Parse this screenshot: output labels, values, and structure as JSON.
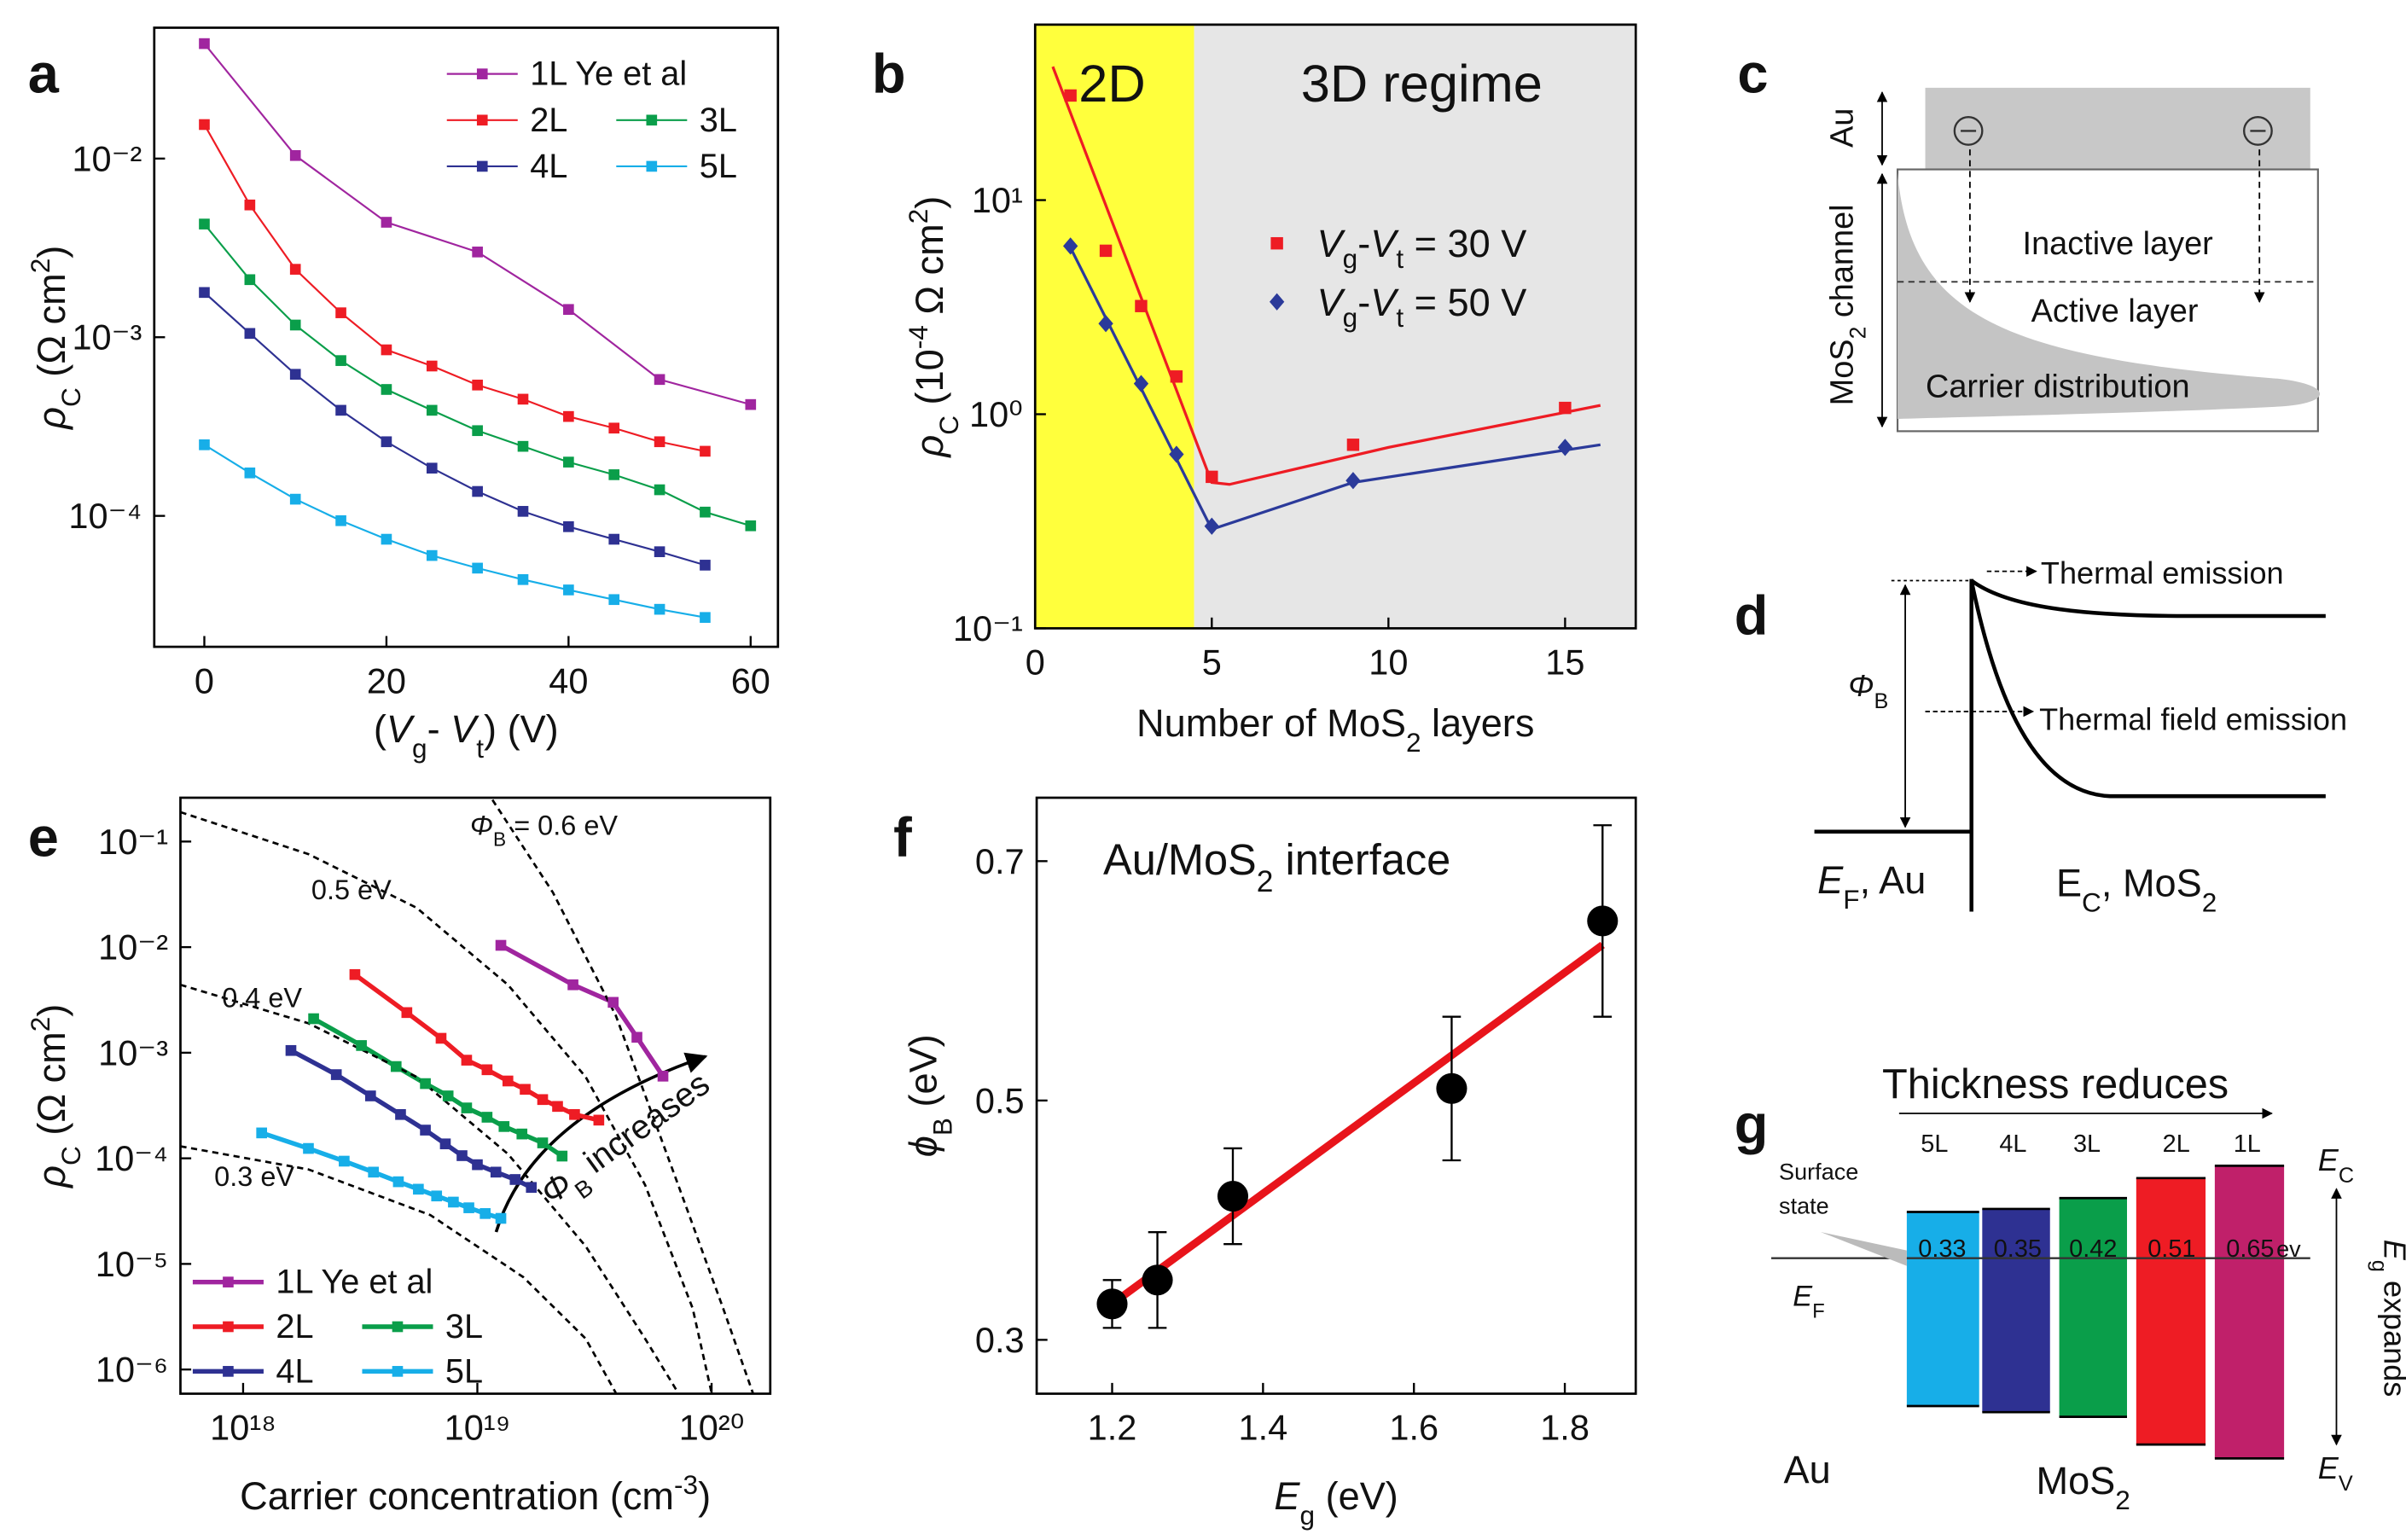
{
  "chart_data": [
    {
      "panel": "a",
      "type": "line",
      "marker": "square",
      "xlog": false,
      "ylog": true,
      "xlabel": [
        {
          "text": "("
        },
        {
          "text": "V",
          "italic": true
        },
        {
          "text": "g",
          "sub": true
        },
        {
          "text": "- "
        },
        {
          "text": "V",
          "italic": true
        },
        {
          "text": "t",
          "sub": true
        },
        {
          "text": ") (V)"
        }
      ],
      "ylabel": [
        {
          "text": "ρ",
          "italic": true
        },
        {
          "text": "C",
          "sub": true
        },
        {
          "text": " (Ω cm"
        },
        {
          "text": "2",
          "sup": true
        },
        {
          "text": ")"
        }
      ],
      "xlim": [
        -5.5,
        63
      ],
      "ylim": [
        1.85e-05,
        0.054
      ],
      "xticks": [
        0,
        20,
        40,
        60
      ],
      "yticks": [
        {
          "value": 0.0001,
          "label": "10⁻⁴"
        },
        {
          "value": 0.001,
          "label": "10⁻³"
        },
        {
          "value": 0.01,
          "label": "10⁻²"
        }
      ],
      "legend": "upper right",
      "legend_columns": 2,
      "series": [
        {
          "name": "1L Ye et al",
          "color": "#a0259f",
          "x": [
            0,
            10,
            20,
            30,
            40,
            50,
            60
          ],
          "values": [
            0.044,
            0.0104,
            0.0044,
            0.003,
            0.00143,
            0.00058,
            0.00042
          ]
        },
        {
          "name": "2L",
          "color": "#ee1c24",
          "x": [
            0,
            5,
            10,
            15,
            20,
            25,
            30,
            35,
            40,
            45,
            50,
            55
          ],
          "values": [
            0.0155,
            0.0055,
            0.0024,
            0.00137,
            0.00085,
            0.00069,
            0.00054,
            0.00045,
            0.00036,
            0.00031,
            0.00026,
            0.00023
          ]
        },
        {
          "name": "3L",
          "color": "#0a9e4a",
          "x": [
            0,
            5,
            10,
            15,
            20,
            25,
            30,
            35,
            40,
            45,
            50,
            55,
            60
          ],
          "values": [
            0.0043,
            0.0021,
            0.00117,
            0.00074,
            0.00051,
            0.00039,
            0.0003,
            0.000245,
            0.0002,
            0.00017,
            0.00014,
            0.000105,
            8.8e-05
          ]
        },
        {
          "name": "4L",
          "color": "#2e3192",
          "x": [
            0,
            5,
            10,
            15,
            20,
            25,
            30,
            35,
            40,
            45,
            50,
            55
          ],
          "values": [
            0.00178,
            0.00105,
            0.00062,
            0.00039,
            0.00026,
            0.000185,
            0.000137,
            0.000106,
            8.7e-05,
            7.4e-05,
            6.3e-05,
            5.3e-05
          ]
        },
        {
          "name": "5L",
          "color": "#17aee8",
          "x": [
            0,
            5,
            10,
            15,
            20,
            25,
            30,
            35,
            40,
            45,
            50,
            55
          ],
          "values": [
            0.00025,
            0.000174,
            0.000124,
            9.4e-05,
            7.4e-05,
            6e-05,
            5.1e-05,
            4.4e-05,
            3.85e-05,
            3.4e-05,
            3e-05,
            2.7e-05
          ]
        }
      ]
    },
    {
      "panel": "b",
      "type": "scatter",
      "xlog": false,
      "ylog": true,
      "xlabel": [
        {
          "text": "Number of MoS"
        },
        {
          "text": "2",
          "sub": true
        },
        {
          "text": " layers"
        }
      ],
      "ylabel": [
        {
          "text": "ρ",
          "italic": true
        },
        {
          "text": "C",
          "sub": true
        },
        {
          "text": " (10"
        },
        {
          "text": "-4",
          "sup": true
        },
        {
          "text": " Ω cm"
        },
        {
          "text": "2",
          "sup": true
        },
        {
          "text": ")"
        }
      ],
      "xlim": [
        0,
        17
      ],
      "ylim": [
        0.1,
        66
      ],
      "xticks": [
        0,
        5,
        10,
        15
      ],
      "yticks": [
        {
          "value": 0.1,
          "label": "10⁻¹"
        },
        {
          "value": 1,
          "label": "10⁰"
        },
        {
          "value": 10,
          "label": "10¹"
        }
      ],
      "regions": [
        {
          "x": [
            0,
            4.5
          ],
          "color": "#ffff3c"
        },
        {
          "x": [
            4.5,
            17
          ],
          "color": "#e6e6e6"
        }
      ],
      "annotations": [
        "2D",
        "3D regime"
      ],
      "legend": "center right",
      "legend_columns": 1,
      "series": [
        {
          "name": [
            {
              "text": "V",
              "italic": true
            },
            {
              "text": "g",
              "sub": true
            },
            {
              "text": "-"
            },
            {
              "text": "V",
              "italic": true
            },
            {
              "text": "t",
              "sub": true
            },
            {
              "text": " = 30 V"
            }
          ],
          "color": "#ee1c24",
          "style": "markers",
          "marker": "square",
          "x": [
            1,
            2,
            3,
            4,
            5,
            9,
            15
          ],
          "values": [
            30.8,
            5.8,
            3.2,
            1.5,
            0.51,
            0.72,
            1.07
          ]
        },
        {
          "name": [
            {
              "text": "V",
              "italic": true
            },
            {
              "text": "g",
              "sub": true
            },
            {
              "text": "-"
            },
            {
              "text": "V",
              "italic": true
            },
            {
              "text": "t",
              "sub": true
            },
            {
              "text": " = 50 V"
            }
          ],
          "color": "#2b3a9a",
          "style": "markers",
          "marker": "diamond",
          "x": [
            1,
            2,
            3,
            4,
            5,
            9,
            15
          ],
          "values": [
            6.1,
            2.65,
            1.39,
            0.65,
            0.3,
            0.49,
            0.7
          ]
        },
        {
          "color": "#ee1c24",
          "style": "line",
          "x": [
            0.5,
            5,
            5.5,
            10,
            16
          ],
          "values": [
            42,
            0.48,
            0.47,
            0.7,
            1.1
          ]
        },
        {
          "color": "#2b3a9a",
          "style": "line",
          "x": [
            1,
            5,
            9,
            16
          ],
          "values": [
            6.0,
            0.29,
            0.48,
            0.72
          ]
        }
      ]
    },
    {
      "panel": "e",
      "type": "line",
      "marker": "square",
      "xlog": true,
      "ylog": true,
      "xlabel": [
        {
          "text": "Carrier concentration (cm"
        },
        {
          "text": "-3",
          "sup": true
        },
        {
          "text": ")"
        }
      ],
      "ylabel": [
        {
          "text": "ρ",
          "italic": true
        },
        {
          "text": "C",
          "sub": true
        },
        {
          "text": " (Ω cm"
        },
        {
          "text": "2",
          "sup": true
        },
        {
          "text": ")"
        }
      ],
      "xlim": [
        5.4e+17,
        1.78e+20
      ],
      "ylim": [
        5.9e-07,
        0.26
      ],
      "xticks": [
        {
          "value": 1e+18,
          "label": "10¹⁸"
        },
        {
          "value": 1e+19,
          "label": "10¹⁹"
        },
        {
          "value": 1e+20,
          "label": "10²⁰"
        }
      ],
      "yticks": [
        {
          "value": 1e-06,
          "label": "10⁻⁶"
        },
        {
          "value": 1e-05,
          "label": "10⁻⁵"
        },
        {
          "value": 0.0001,
          "label": "10⁻⁴"
        },
        {
          "value": 0.001,
          "label": "10⁻³"
        },
        {
          "value": 0.01,
          "label": "10⁻²"
        },
        {
          "value": 0.1,
          "label": "10⁻¹"
        }
      ],
      "annotations": [
        [
          {
            "text": "Φ",
            "italic": true
          },
          {
            "text": "B",
            "sub": true
          },
          {
            "text": " = 0.6 eV"
          }
        ],
        "0.5 eV",
        "0.4 eV",
        "0.3 eV",
        [
          {
            "text": "Φ",
            "italic": true
          },
          {
            "text": "B",
            "sub": true
          },
          {
            "text": " increases"
          }
        ]
      ],
      "legend": "lower left",
      "legend_columns": 2,
      "series": [
        {
          "name": "1L Ye et al",
          "color": "#a0259f",
          "x": [
            1.26e+19,
            2.56e+19,
            3.8e+19,
            4.8e+19,
            6.2e+19
          ],
          "values": [
            0.0104,
            0.0044,
            0.003,
            0.0014,
            0.0006
          ]
        },
        {
          "name": "2L",
          "color": "#ee1c24",
          "x": [
            3e+18,
            5e+18,
            7e+18,
            9e+18,
            1.1e+19,
            1.35e+19,
            1.6e+19,
            1.9e+19,
            2.2e+19,
            2.6e+19,
            3.3e+19
          ],
          "values": [
            0.0055,
            0.0024,
            0.00137,
            0.00085,
            0.00069,
            0.00054,
            0.00045,
            0.00036,
            0.00031,
            0.00026,
            0.00023
          ]
        },
        {
          "name": "3L",
          "color": "#0a9e4a",
          "x": [
            2e+18,
            3.2e+18,
            4.5e+18,
            6e+18,
            7.5e+18,
            9e+18,
            1.1e+19,
            1.3e+19,
            1.55e+19,
            1.9e+19,
            2.3e+19
          ],
          "values": [
            0.0021,
            0.00117,
            0.00074,
            0.00051,
            0.00039,
            0.0003,
            0.000245,
            0.0002,
            0.00017,
            0.00014,
            0.000105
          ]
        },
        {
          "name": "4L",
          "color": "#2e3192",
          "x": [
            1.6e+18,
            2.5e+18,
            3.5e+18,
            4.7e+18,
            6e+18,
            7.3e+18,
            8.6e+18,
            1e+19,
            1.2e+19,
            1.45e+19,
            1.7e+19
          ],
          "values": [
            0.00105,
            0.00062,
            0.00039,
            0.00026,
            0.000185,
            0.000137,
            0.000106,
            8.7e-05,
            7.4e-05,
            6.3e-05,
            5.3e-05
          ]
        },
        {
          "name": "5L",
          "color": "#17aee8",
          "x": [
            1.2e+18,
            1.9e+18,
            2.7e+18,
            3.6e+18,
            4.6e+18,
            5.6e+18,
            6.7e+18,
            7.9e+18,
            9.2e+18,
            1.08e+19,
            1.26e+19
          ],
          "values": [
            0.000174,
            0.000124,
            9.4e-05,
            7.4e-05,
            6e-05,
            5.1e-05,
            4.4e-05,
            3.85e-05,
            3.4e-05,
            3e-05,
            2.7e-05
          ]
        },
        {
          "color": "#000000",
          "style": "line",
          "dash": true,
          "x": [
            1.16e+19,
            2.1e+19,
            3.9e+19,
            7.2e+19,
            1.12e+20,
            1.5e+20
          ],
          "values": [
            0.248,
            0.033,
            0.00225,
            5.6e-05,
            3.8e-06,
            6e-07
          ]
        },
        {
          "color": "#000000",
          "style": "line",
          "dash": true,
          "x": [
            5.4e+17,
            1.9e+18,
            5.5e+18,
            1.35e+19,
            2.9e+19,
            5.2e+19,
            8.3e+19,
            1e+20
          ],
          "values": [
            0.19,
            0.076,
            0.0236,
            0.0044,
            0.00059,
            5.6e-05,
            3.8e-06,
            6e-07
          ]
        },
        {
          "color": "#000000",
          "style": "line",
          "dash": true,
          "x": [
            5.4e+17,
            1.9e+18,
            5.5e+18,
            1.35e+19,
            2.9e+19,
            5.2e+19,
            7.2e+19
          ],
          "values": [
            0.0044,
            0.0019,
            0.00059,
            0.00011,
            1.47e-05,
            1.96e-06,
            6e-07
          ]
        },
        {
          "color": "#000000",
          "style": "line",
          "dash": true,
          "x": [
            5.4e+17,
            1.9e+18,
            6.3e+18,
            1.57e+19,
            2.9e+19,
            3.9e+19
          ],
          "values": [
            0.00013,
            7.85e-05,
            2.9e-05,
            7.5e-06,
            1.96e-06,
            6e-07
          ]
        }
      ]
    },
    {
      "panel": "f",
      "type": "scatter",
      "xlog": false,
      "ylog": false,
      "xlabel": [
        {
          "text": "E",
          "italic": true
        },
        {
          "text": "g",
          "sub": true
        },
        {
          "text": " (eV)"
        }
      ],
      "ylabel": [
        {
          "text": "ϕ",
          "italic": true
        },
        {
          "text": "B",
          "sub": true
        },
        {
          "text": " (eV)"
        }
      ],
      "xlim": [
        1.1,
        1.894
      ],
      "ylim": [
        0.255,
        0.753
      ],
      "xticks": [
        1.2,
        1.4,
        1.6,
        1.8
      ],
      "yticks": [
        0.3,
        0.5,
        0.7
      ],
      "annotations": [
        [
          {
            "text": "Au/MoS"
          },
          {
            "text": "2",
            "sub": true
          },
          {
            "text": " interface"
          }
        ]
      ],
      "series": [
        {
          "color": "#e8141b",
          "style": "line",
          "x": [
            1.2,
            1.85
          ],
          "values": [
            0.33,
            0.63
          ]
        },
        {
          "color": "#000000",
          "style": "markers",
          "marker": "circle",
          "x": [
            1.2,
            1.26,
            1.36,
            1.65,
            1.85
          ],
          "values": [
            0.33,
            0.35,
            0.42,
            0.51,
            0.65
          ],
          "errors": [
            0.02,
            0.04,
            0.04,
            0.06,
            0.08
          ]
        }
      ]
    }
  ],
  "diagram_c": {
    "label": "c",
    "metal": "Au",
    "channel": [
      {
        "text": "MoS"
      },
      {
        "text": "2",
        "sub": true
      },
      {
        "text": " channel"
      }
    ],
    "layers": [
      "Inactive layer",
      "Active  layer"
    ],
    "distribution": "Carrier distribution"
  },
  "diagram_d": {
    "label": "d",
    "thermal": "Thermal emission",
    "field": "Thermal field emission",
    "barrier": [
      {
        "text": "Φ",
        "italic": true
      },
      {
        "text": "B",
        "sub": true
      }
    ],
    "metal": [
      {
        "text": "E",
        "italic": true
      },
      {
        "text": "F",
        "sub": true
      },
      {
        "text": ", Au"
      }
    ],
    "semiconductor": [
      {
        "text": "E"
      },
      {
        "text": "C",
        "sub": true
      },
      {
        "text": ", MoS"
      },
      {
        "text": "2",
        "sub": true
      }
    ]
  },
  "diagram_g": {
    "label": "g",
    "title": "Thickness  reduces",
    "layers": [
      "5L",
      "4L",
      "3L",
      "2L",
      "1L"
    ],
    "barriers": [
      0.33,
      0.35,
      0.42,
      0.51,
      0.65
    ],
    "unit": "ev",
    "surface_state": [
      "Surface",
      "state"
    ],
    "fermi": [
      {
        "text": "E",
        "italic": true
      },
      {
        "text": "F",
        "sub": true
      }
    ],
    "metal": "Au",
    "semiconductor": [
      {
        "text": "MoS"
      },
      {
        "text": "2",
        "sub": true
      }
    ],
    "conduction": [
      {
        "text": "E",
        "italic": true
      },
      {
        "text": "C",
        "sub": true
      }
    ],
    "valence": [
      {
        "text": "E",
        "italic": true
      },
      {
        "text": "V",
        "sub": true
      }
    ],
    "gap": [
      {
        "text": "E",
        "italic": true
      },
      {
        "text": "g",
        "sub": true
      },
      {
        "text": " expands"
      }
    ]
  }
}
